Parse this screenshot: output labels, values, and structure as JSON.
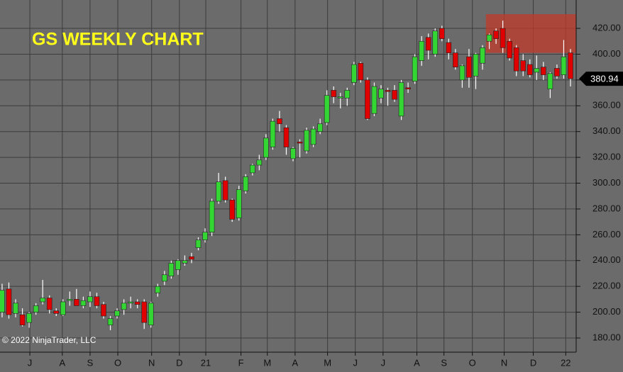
{
  "chart_data": {
    "type": "candlestick",
    "title": "GS WEEKLY CHART",
    "copyright": "© 2022 NinjaTrader, LLC",
    "x": [
      0,
      1,
      2,
      3,
      4,
      5,
      6,
      7,
      8,
      9,
      10,
      11,
      12,
      13,
      14,
      15,
      16,
      17,
      18,
      19,
      20,
      21,
      22,
      23,
      24,
      25,
      26,
      27,
      28,
      29,
      30,
      31,
      32,
      33,
      34,
      35,
      36,
      37,
      38,
      39,
      40,
      41,
      42,
      43,
      44,
      45,
      46,
      47,
      48,
      49,
      50,
      51,
      52,
      53,
      54,
      55,
      56,
      57,
      58,
      59,
      60,
      61,
      62,
      63,
      64,
      65,
      66,
      67,
      68,
      69,
      70,
      71,
      72,
      73,
      74,
      75,
      76,
      77,
      78,
      79,
      80,
      81,
      82,
      83,
      84
    ],
    "open": [
      200,
      218,
      199,
      198,
      192,
      200,
      208,
      211,
      201,
      198,
      209,
      210,
      205,
      208,
      212,
      206,
      190,
      197,
      202,
      207,
      208,
      208,
      190,
      215,
      224,
      228,
      233,
      238,
      243,
      250,
      256,
      262,
      286,
      302,
      287,
      273,
      294,
      308,
      314,
      320,
      328,
      350,
      343,
      319,
      332,
      325,
      330,
      340,
      347,
      372,
      366,
      366,
      378,
      393,
      380,
      354,
      366,
      372,
      372,
      352,
      374,
      379,
      395,
      413,
      400,
      420,
      409,
      401,
      380,
      398,
      383,
      393,
      410,
      418,
      420,
      410,
      405,
      395,
      392,
      386,
      390,
      373,
      389,
      384,
      401
    ],
    "high": [
      222,
      223,
      210,
      203,
      200,
      207,
      225,
      213,
      203,
      210,
      216,
      218,
      212,
      216,
      215,
      208,
      197,
      203,
      210,
      212,
      210,
      210,
      208,
      222,
      232,
      240,
      241,
      244,
      246,
      258,
      265,
      288,
      308,
      305,
      288,
      298,
      307,
      315,
      322,
      338,
      350,
      356,
      345,
      328,
      334,
      343,
      344,
      350,
      372,
      375,
      370,
      374,
      394,
      394,
      382,
      378,
      376,
      374,
      376,
      380,
      378,
      400,
      414,
      416,
      420,
      422,
      412,
      404,
      392,
      404,
      401,
      407,
      416,
      420,
      426,
      412,
      407,
      400,
      396,
      399,
      394,
      386,
      392,
      411,
      404
    ],
    "low": [
      196,
      195,
      196,
      189,
      188,
      198,
      206,
      199,
      197,
      197,
      205,
      206,
      203,
      204,
      203,
      195,
      186,
      195,
      198,
      203,
      203,
      187,
      188,
      212,
      221,
      226,
      229,
      236,
      238,
      248,
      254,
      259,
      284,
      285,
      270,
      271,
      292,
      306,
      310,
      318,
      326,
      340,
      322,
      317,
      320,
      323,
      328,
      338,
      345,
      362,
      358,
      360,
      376,
      378,
      349,
      352,
      362,
      360,
      363,
      349,
      370,
      377,
      391,
      396,
      398,
      410,
      396,
      388,
      374,
      374,
      373,
      388,
      404,
      408,
      401,
      395,
      383,
      383,
      382,
      380,
      380,
      366,
      381,
      381,
      375
    ],
    "close": [
      217,
      198,
      207,
      190,
      199,
      205,
      211,
      202,
      199,
      208,
      210,
      205,
      209,
      212,
      205,
      197,
      195,
      201,
      207,
      208,
      206,
      192,
      207,
      220,
      229,
      238,
      240,
      240,
      241,
      256,
      262,
      286,
      301,
      287,
      272,
      295,
      305,
      314,
      318,
      335,
      348,
      346,
      328,
      327,
      331,
      341,
      342,
      346,
      368,
      367,
      367,
      372,
      392,
      380,
      350,
      375,
      373,
      371,
      365,
      378,
      373,
      398,
      410,
      403,
      418,
      412,
      401,
      390,
      391,
      382,
      400,
      405,
      415,
      412,
      405,
      397,
      387,
      387,
      384,
      389,
      384,
      385,
      383,
      398,
      381
    ],
    "up_color": "#33d633",
    "down_color": "#e00000",
    "wick_color": "#ffffff",
    "last_price": 380.94,
    "highlight": {
      "x": [
        71.5,
        84.84
      ],
      "y": [
        401,
        431
      ],
      "color": "#c0392b"
    },
    "xlim": [
      -0.31,
      84.84
    ],
    "ylim": [
      169,
      442
    ],
    "xticks": [
      {
        "value": 4.1,
        "label": "J"
      },
      {
        "value": 8.9,
        "label": "A"
      },
      {
        "value": 13.0,
        "label": "S"
      },
      {
        "value": 17.1,
        "label": "O"
      },
      {
        "value": 22.1,
        "label": "N"
      },
      {
        "value": 26.2,
        "label": "D"
      },
      {
        "value": 30.1,
        "label": "21"
      },
      {
        "value": 35.3,
        "label": "F"
      },
      {
        "value": 39.2,
        "label": "M"
      },
      {
        "value": 43.3,
        "label": "A"
      },
      {
        "value": 48.1,
        "label": "M"
      },
      {
        "value": 52.2,
        "label": "J"
      },
      {
        "value": 56.3,
        "label": "J"
      },
      {
        "value": 61.3,
        "label": "A"
      },
      {
        "value": 65.3,
        "label": "S"
      },
      {
        "value": 69.5,
        "label": "O"
      },
      {
        "value": 74.2,
        "label": "N"
      },
      {
        "value": 78.5,
        "label": "D"
      },
      {
        "value": 83.3,
        "label": "22"
      }
    ],
    "yticks": [
      {
        "value": 180,
        "label": "180.00"
      },
      {
        "value": 200,
        "label": "200.00"
      },
      {
        "value": 220,
        "label": "220.00"
      },
      {
        "value": 240,
        "label": "240.00"
      },
      {
        "value": 260,
        "label": "260.00"
      },
      {
        "value": 280,
        "label": "280.00"
      },
      {
        "value": 300,
        "label": "300.00"
      },
      {
        "value": 320,
        "label": "320.00"
      },
      {
        "value": 340,
        "label": "340.00"
      },
      {
        "value": 360,
        "label": "360.00"
      },
      {
        "value": 380,
        "label": "380.00"
      },
      {
        "value": 400,
        "label": "400.00"
      },
      {
        "value": 420,
        "label": "420.00"
      }
    ],
    "grid": true
  }
}
